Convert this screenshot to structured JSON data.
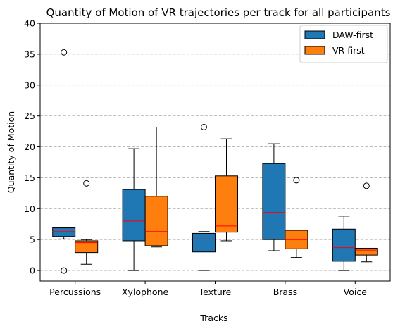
{
  "chart_data": {
    "type": "box",
    "title": "Quantity of Motion of VR trajectories per track for all participants",
    "xlabel": "Tracks",
    "ylabel": "Quantity of Motion",
    "ylim": [
      -1.7,
      40
    ],
    "yticks": [
      0,
      5,
      10,
      15,
      20,
      25,
      30,
      35,
      40
    ],
    "grid": "y-dashed",
    "legend_position": "top-right",
    "median_color": "#ff0000",
    "categories": [
      "Percussions",
      "Xylophone",
      "Texture",
      "Brass",
      "Voice"
    ],
    "series": [
      {
        "name": "DAW-first",
        "color": "#1f77b4",
        "boxes": [
          {
            "whislo": 5.1,
            "q1": 5.5,
            "med": 6.3,
            "q3": 6.9,
            "whishi": 7.0,
            "fliers": [
              35.3,
              0.0
            ]
          },
          {
            "whislo": 0.0,
            "q1": 4.8,
            "med": 8.0,
            "q3": 13.1,
            "whishi": 19.7,
            "fliers": []
          },
          {
            "whislo": 0.0,
            "q1": 3.0,
            "med": 5.1,
            "q3": 6.0,
            "whishi": 6.3,
            "fliers": [
              23.2
            ]
          },
          {
            "whislo": 3.2,
            "q1": 5.0,
            "med": 9.4,
            "q3": 17.3,
            "whishi": 20.5,
            "fliers": []
          },
          {
            "whislo": 0.0,
            "q1": 1.5,
            "med": 3.7,
            "q3": 6.7,
            "whishi": 8.8,
            "fliers": []
          }
        ]
      },
      {
        "name": "VR-first",
        "color": "#ff7f0e",
        "boxes": [
          {
            "whislo": 1.0,
            "q1": 2.9,
            "med": 4.5,
            "q3": 4.8,
            "whishi": 5.0,
            "fliers": [
              14.1
            ]
          },
          {
            "whislo": 3.8,
            "q1": 4.0,
            "med": 6.3,
            "q3": 12.0,
            "whishi": 23.2,
            "fliers": []
          },
          {
            "whislo": 4.8,
            "q1": 6.2,
            "med": 7.2,
            "q3": 15.3,
            "whishi": 21.3,
            "fliers": []
          },
          {
            "whislo": 2.1,
            "q1": 3.5,
            "med": 5.0,
            "q3": 6.5,
            "whishi": 6.5,
            "fliers": [
              14.6
            ]
          },
          {
            "whislo": 1.4,
            "q1": 2.5,
            "med": 3.3,
            "q3": 3.6,
            "whishi": 3.6,
            "fliers": [
              13.7
            ]
          }
        ]
      }
    ]
  }
}
